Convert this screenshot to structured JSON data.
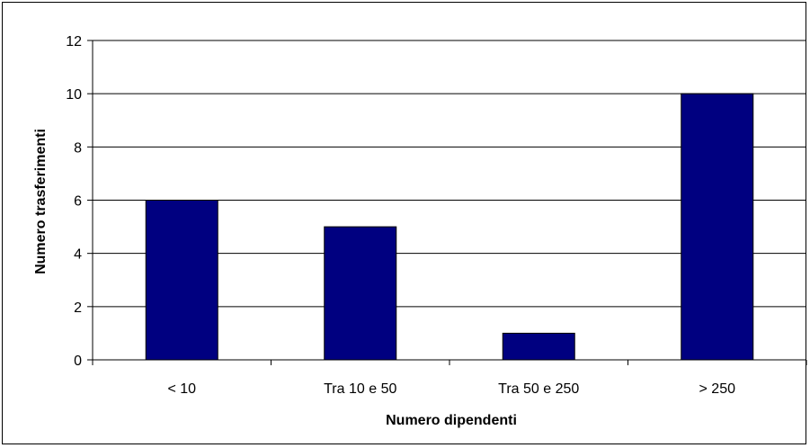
{
  "chart_data": {
    "type": "bar",
    "title": "",
    "xlabel": "Numero dipendenti",
    "ylabel": "Numero trasferimenti",
    "categories": [
      "< 10",
      "Tra 10 e 50",
      "Tra 50 e 250",
      "> 250"
    ],
    "values": [
      6,
      5,
      1,
      10
    ],
    "ylim": [
      0,
      12
    ],
    "yticks": [
      "0",
      "2",
      "4",
      "6",
      "8",
      "10",
      "12"
    ],
    "grid": true,
    "legend": "none",
    "bar_color": "#000080",
    "bar_edge_color": "#000000"
  }
}
